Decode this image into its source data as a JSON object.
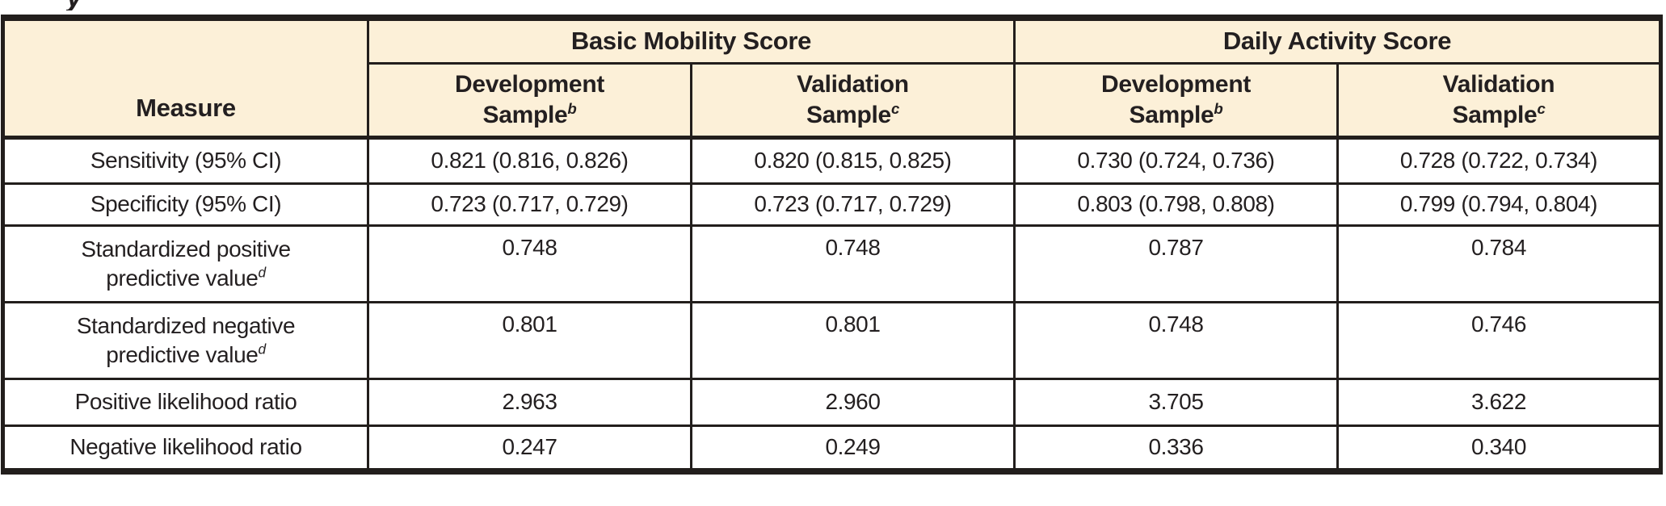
{
  "page": {
    "title_fragment": "y"
  },
  "table": {
    "measure_header": "Measure",
    "col_groups": [
      {
        "label": "Basic Mobility Score"
      },
      {
        "label": "Daily Activity Score"
      }
    ],
    "sub_headers": [
      {
        "line1": "Development",
        "line2": "Sample",
        "sup": "b"
      },
      {
        "line1": "Validation",
        "line2": "Sample",
        "sup": "c"
      },
      {
        "line1": "Development",
        "line2": "Sample",
        "sup": "b"
      },
      {
        "line1": "Validation",
        "line2": "Sample",
        "sup": "c"
      }
    ],
    "rows": [
      {
        "label1": "Sensitivity (95% CI)",
        "label2": "",
        "sup": "",
        "values": [
          "0.821 (0.816, 0.826)",
          "0.820 (0.815, 0.825)",
          "0.730 (0.724, 0.736)",
          "0.728 (0.722, 0.734)"
        ]
      },
      {
        "label1": "Specificity (95% CI)",
        "label2": "",
        "sup": "",
        "values": [
          "0.723 (0.717, 0.729)",
          "0.723 (0.717, 0.729)",
          "0.803 (0.798, 0.808)",
          "0.799 (0.794, 0.804)"
        ]
      },
      {
        "label1": "Standardized positive",
        "label2": "predictive value",
        "sup": "d",
        "values": [
          "0.748",
          "0.748",
          "0.787",
          "0.784"
        ]
      },
      {
        "label1": "Standardized negative",
        "label2": "predictive value",
        "sup": "d",
        "values": [
          "0.801",
          "0.801",
          "0.748",
          "0.746"
        ]
      },
      {
        "label1": "Positive likelihood ratio",
        "label2": "",
        "sup": "",
        "values": [
          "2.963",
          "2.960",
          "3.705",
          "3.622"
        ]
      },
      {
        "label1": "Negative likelihood ratio",
        "label2": "",
        "sup": "",
        "values": [
          "0.247",
          "0.249",
          "0.336",
          "0.340"
        ]
      }
    ],
    "colors": {
      "header_bg": "#FCF0D8",
      "border": "#221E1C",
      "text": "#231F20"
    }
  }
}
